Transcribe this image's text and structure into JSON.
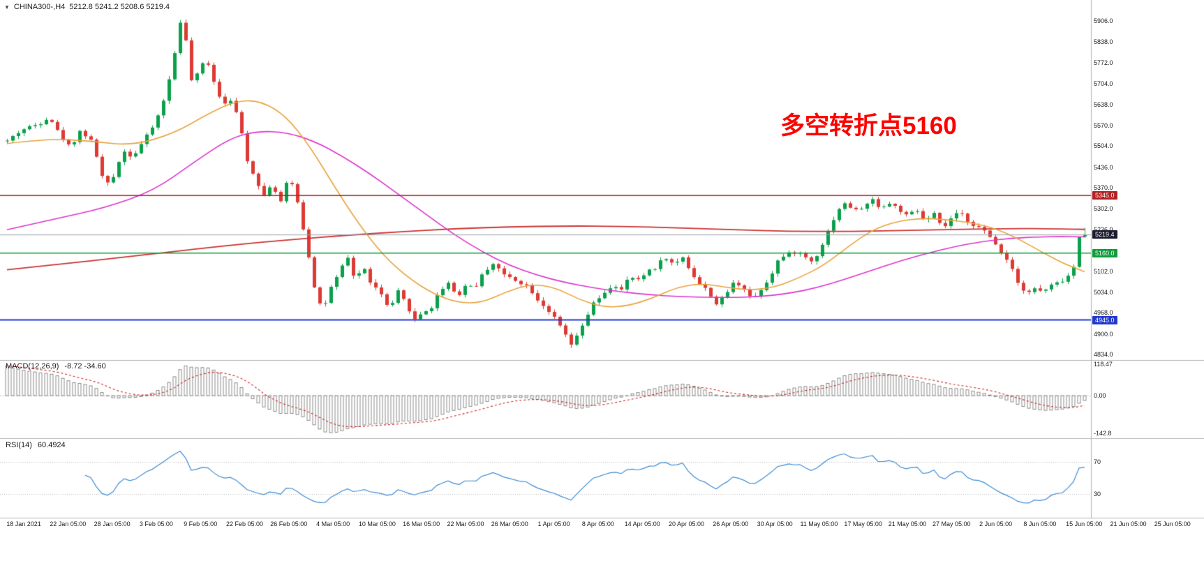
{
  "header": {
    "symbol": "CHINA300-,H4",
    "ohlc": "5212.8 5241.2 5208.6 5219.4",
    "dropdown_icon": "▼"
  },
  "chart_data": [
    {
      "type": "candlestick",
      "symbol": "CHINA300-,H4",
      "timeframe": "H4",
      "current_bar": {
        "open": 5212.8,
        "high": 5241.2,
        "low": 5208.6,
        "close": 5219.4
      },
      "up_color": "#0ba04b",
      "down_color": "#dd3a34",
      "y_axis": {
        "top_price": 5906,
        "bottom_price": 4834,
        "tick_labels": [
          "5906.0",
          "5838.0",
          "5772.0",
          "5704.0",
          "5638.0",
          "5570.0",
          "5504.0",
          "5436.0",
          "5370.0",
          "5302.0",
          "5236.0",
          "5102.0",
          "5034.0",
          "4968.0",
          "4900.0",
          "4834.0"
        ]
      },
      "x_axis": {
        "labels": [
          "18 Jan 2021",
          "22 Jan 05:00",
          "28 Jan 05:00",
          "3 Feb 05:00",
          "9 Feb 05:00",
          "22 Feb 05:00",
          "26 Feb 05:00",
          "4 Mar 05:00",
          "10 Mar 05:00",
          "16 Mar 05:00",
          "22 Mar 05:00",
          "26 Mar 05:00",
          "1 Apr 05:00",
          "8 Apr 05:00",
          "14 Apr 05:00",
          "20 Apr 05:00",
          "26 Apr 05:00",
          "30 Apr 05:00",
          "11 May 05:00",
          "17 May 05:00",
          "21 May 05:00",
          "27 May 05:00",
          "2 Jun 05:00",
          "8 Jun 05:00",
          "15 Jun 05:00",
          "21 Jun 05:00",
          "25 Jun 05:00"
        ]
      },
      "horizontal_lines": [
        {
          "price": 5345.0,
          "label": "5345.0",
          "color": "#b22222",
          "width": 1.5
        },
        {
          "price": 5160.0,
          "label": "5160.0",
          "color": "#0f9d3a",
          "width": 1.5
        },
        {
          "price": 4945.0,
          "label": "4945.0",
          "color": "#2238cc",
          "width": 2
        }
      ],
      "current_price_line": {
        "price": 5219.4,
        "label": "5219.4",
        "line_color": "#9aa0a8",
        "tag_color": "#1b1b2f"
      },
      "annotation": {
        "text": "多空转折点5160",
        "color": "#ff0000"
      },
      "moving_averages": [
        {
          "name": "ma-slow-red",
          "color": "#cc3333",
          "width": 1.8,
          "anchors": [
            [
              10,
              5106
            ],
            [
              90,
              5125
            ],
            [
              170,
              5145
            ],
            [
              250,
              5165
            ],
            [
              330,
              5185
            ],
            [
              410,
              5202
            ],
            [
              490,
              5216
            ],
            [
              570,
              5228
            ],
            [
              650,
              5238
            ],
            [
              730,
              5244
            ],
            [
              810,
              5247
            ],
            [
              890,
              5246
            ],
            [
              970,
              5241
            ],
            [
              1050,
              5235
            ],
            [
              1130,
              5230
            ],
            [
              1210,
              5229
            ],
            [
              1290,
              5232
            ],
            [
              1370,
              5236
            ],
            [
              1450,
              5239
            ],
            [
              1510,
              5238
            ],
            [
              1554,
              5236
            ]
          ]
        },
        {
          "name": "ma-mid-magenta",
          "color": "#dd33cc",
          "width": 1.6,
          "anchors": [
            [
              10,
              5235
            ],
            [
              80,
              5270
            ],
            [
              150,
              5305
            ],
            [
              220,
              5360
            ],
            [
              280,
              5455
            ],
            [
              330,
              5530
            ],
            [
              370,
              5552
            ],
            [
              410,
              5548
            ],
            [
              450,
              5520
            ],
            [
              490,
              5472
            ],
            [
              530,
              5415
            ],
            [
              570,
              5350
            ],
            [
              610,
              5285
            ],
            [
              650,
              5220
            ],
            [
              690,
              5165
            ],
            [
              730,
              5120
            ],
            [
              770,
              5088
            ],
            [
              810,
              5065
            ],
            [
              850,
              5048
            ],
            [
              890,
              5035
            ],
            [
              930,
              5026
            ],
            [
              970,
              5020
            ],
            [
              1010,
              5018
            ],
            [
              1050,
              5017
            ],
            [
              1090,
              5020
            ],
            [
              1130,
              5030
            ],
            [
              1170,
              5048
            ],
            [
              1210,
              5075
            ],
            [
              1250,
              5105
            ],
            [
              1290,
              5135
            ],
            [
              1330,
              5160
            ],
            [
              1370,
              5182
            ],
            [
              1410,
              5198
            ],
            [
              1450,
              5208
            ],
            [
              1490,
              5212
            ],
            [
              1520,
              5213
            ],
            [
              1554,
              5212
            ]
          ]
        },
        {
          "name": "ma-fast-orange",
          "color": "#e8a33d",
          "width": 1.6,
          "anchors": [
            [
              10,
              5512
            ],
            [
              70,
              5528
            ],
            [
              130,
              5520
            ],
            [
              190,
              5505
            ],
            [
              250,
              5545
            ],
            [
              300,
              5610
            ],
            [
              340,
              5650
            ],
            [
              375,
              5648
            ],
            [
              410,
              5600
            ],
            [
              445,
              5500
            ],
            [
              480,
              5370
            ],
            [
              515,
              5250
            ],
            [
              550,
              5150
            ],
            [
              585,
              5080
            ],
            [
              620,
              5030
            ],
            [
              655,
              5000
            ],
            [
              690,
              5000
            ],
            [
              725,
              5035
            ],
            [
              760,
              5060
            ],
            [
              795,
              5050
            ],
            [
              830,
              5010
            ],
            [
              865,
              4985
            ],
            [
              900,
              4990
            ],
            [
              935,
              5015
            ],
            [
              970,
              5050
            ],
            [
              1005,
              5062
            ],
            [
              1040,
              5050
            ],
            [
              1075,
              5040
            ],
            [
              1110,
              5050
            ],
            [
              1145,
              5080
            ],
            [
              1180,
              5120
            ],
            [
              1215,
              5180
            ],
            [
              1250,
              5235
            ],
            [
              1285,
              5262
            ],
            [
              1320,
              5272
            ],
            [
              1355,
              5268
            ],
            [
              1390,
              5258
            ],
            [
              1425,
              5240
            ],
            [
              1460,
              5205
            ],
            [
              1495,
              5160
            ],
            [
              1525,
              5125
            ],
            [
              1554,
              5100
            ]
          ]
        }
      ],
      "price_anchors": [
        [
          10,
          5520
        ],
        [
          30,
          5555
        ],
        [
          55,
          5575
        ],
        [
          70,
          5600
        ],
        [
          85,
          5540
        ],
        [
          100,
          5500
        ],
        [
          115,
          5555
        ],
        [
          130,
          5520
        ],
        [
          140,
          5460
        ],
        [
          150,
          5370
        ],
        [
          162,
          5405
        ],
        [
          175,
          5490
        ],
        [
          190,
          5470
        ],
        [
          205,
          5520
        ],
        [
          215,
          5550
        ],
        [
          230,
          5620
        ],
        [
          245,
          5740
        ],
        [
          258,
          5905
        ],
        [
          266,
          5840
        ],
        [
          275,
          5700
        ],
        [
          285,
          5745
        ],
        [
          295,
          5790
        ],
        [
          305,
          5720
        ],
        [
          318,
          5640
        ],
        [
          330,
          5655
        ],
        [
          342,
          5585
        ],
        [
          355,
          5450
        ],
        [
          368,
          5390
        ],
        [
          378,
          5345
        ],
        [
          390,
          5390
        ],
        [
          400,
          5310
        ],
        [
          412,
          5395
        ],
        [
          422,
          5370
        ],
        [
          432,
          5260
        ],
        [
          442,
          5150
        ],
        [
          452,
          5030
        ],
        [
          462,
          4975
        ],
        [
          472,
          5040
        ],
        [
          485,
          5090
        ],
        [
          497,
          5150
        ],
        [
          508,
          5075
        ],
        [
          520,
          5115
        ],
        [
          532,
          5060
        ],
        [
          545,
          5030
        ],
        [
          558,
          4975
        ],
        [
          570,
          5035
        ],
        [
          582,
          4995
        ],
        [
          594,
          4945
        ],
        [
          605,
          4970
        ],
        [
          618,
          4985
        ],
        [
          630,
          5040
        ],
        [
          642,
          5065
        ],
        [
          655,
          5020
        ],
        [
          668,
          5060
        ],
        [
          680,
          5050
        ],
        [
          695,
          5105
        ],
        [
          708,
          5130
        ],
        [
          720,
          5090
        ],
        [
          733,
          5080
        ],
        [
          746,
          5065
        ],
        [
          758,
          5050
        ],
        [
          770,
          5010
        ],
        [
          782,
          4985
        ],
        [
          794,
          4950
        ],
        [
          806,
          4910
        ],
        [
          818,
          4865
        ],
        [
          828,
          4895
        ],
        [
          840,
          4955
        ],
        [
          852,
          5005
        ],
        [
          865,
          5025
        ],
        [
          878,
          5060
        ],
        [
          890,
          5040
        ],
        [
          902,
          5085
        ],
        [
          915,
          5070
        ],
        [
          928,
          5105
        ],
        [
          940,
          5115
        ],
        [
          952,
          5150
        ],
        [
          965,
          5120
        ],
        [
          978,
          5148
        ],
        [
          990,
          5098
        ],
        [
          1002,
          5060
        ],
        [
          1015,
          5035
        ],
        [
          1028,
          4990
        ],
        [
          1040,
          5030
        ],
        [
          1052,
          5068
        ],
        [
          1065,
          5050
        ],
        [
          1078,
          5010
        ],
        [
          1090,
          5045
        ],
        [
          1102,
          5080
        ],
        [
          1115,
          5140
        ],
        [
          1128,
          5155
        ],
        [
          1140,
          5165
        ],
        [
          1152,
          5150
        ],
        [
          1164,
          5130
        ],
        [
          1176,
          5180
        ],
        [
          1188,
          5240
        ],
        [
          1200,
          5300
        ],
        [
          1212,
          5320
        ],
        [
          1225,
          5295
        ],
        [
          1238,
          5310
        ],
        [
          1250,
          5330
        ],
        [
          1262,
          5305
        ],
        [
          1275,
          5320
        ],
        [
          1288,
          5300
        ],
        [
          1300,
          5275
        ],
        [
          1312,
          5300
        ],
        [
          1325,
          5260
        ],
        [
          1338,
          5285
        ],
        [
          1350,
          5235
        ],
        [
          1362,
          5270
        ],
        [
          1375,
          5290
        ],
        [
          1388,
          5260
        ],
        [
          1400,
          5245
        ],
        [
          1412,
          5225
        ],
        [
          1424,
          5195
        ],
        [
          1436,
          5160
        ],
        [
          1448,
          5120
        ],
        [
          1460,
          5060
        ],
        [
          1470,
          5030
        ],
        [
          1482,
          5045
        ],
        [
          1494,
          5035
        ],
        [
          1506,
          5055
        ],
        [
          1518,
          5065
        ],
        [
          1530,
          5085
        ],
        [
          1542,
          5130
        ],
        [
          1550,
          5190
        ],
        [
          1554,
          5219
        ]
      ]
    },
    {
      "type": "bar",
      "name": "MACD",
      "label": "MACD(12,26,9)",
      "values": "-8.72 -34.60",
      "params": {
        "fast": 12,
        "slow": 26,
        "signal": 9
      },
      "axis_labels": [
        "118.47",
        "0.00",
        "-142.8"
      ],
      "histogram_color": "#6f6f6f",
      "signal_color": "#cc2222"
    },
    {
      "type": "line",
      "name": "RSI",
      "label": "RSI(14)",
      "value": "60.4924",
      "period": 14,
      "levels": [
        70,
        30
      ],
      "line_color": "#3d8bd4"
    }
  ]
}
